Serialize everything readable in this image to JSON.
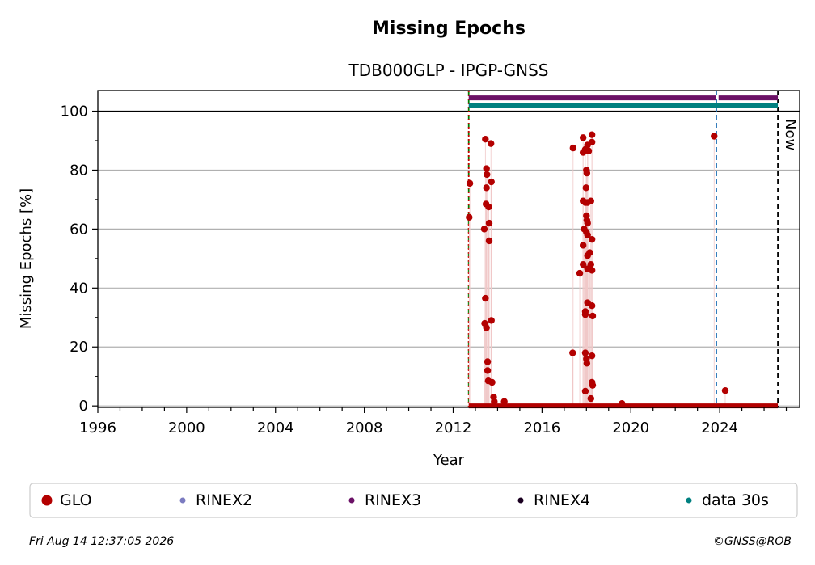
{
  "chart_data": {
    "type": "scatter",
    "title": "Missing Epochs",
    "subtitle": "TDB000GLP - IPGP-GNSS",
    "xlabel": "Year",
    "ylabel": "Missing Epochs [%]",
    "xlim": [
      1996,
      2027.6
    ],
    "ylim": [
      -0.5,
      107
    ],
    "x_ticks": [
      1996,
      2000,
      2004,
      2008,
      2012,
      2016,
      2020,
      2024
    ],
    "y_ticks": [
      0,
      20,
      40,
      60,
      80,
      100
    ],
    "grid": "horizontal",
    "now_label": "Now",
    "vertical_lines": [
      {
        "x": 2012.7,
        "color": "#008000",
        "style": "dashed"
      },
      {
        "x": 2012.7,
        "color": "#cc0000",
        "style": "dotted"
      },
      {
        "x": 2023.85,
        "color": "#1f6fb4",
        "style": "dashed"
      },
      {
        "x": 2026.62,
        "color": "#000000",
        "style": "dashed"
      }
    ],
    "bands": [
      {
        "name": "RINEX3",
        "y": 104.5,
        "x_start": 2012.7,
        "x_end": 2026.62,
        "color": "#6b1166",
        "gap": [
          2023.85,
          2023.95
        ]
      },
      {
        "name": "data 30s",
        "y": 101.8,
        "x_start": 2012.7,
        "x_end": 2026.62,
        "color": "#008080"
      }
    ],
    "baseline": {
      "name": "GLO",
      "y": 0,
      "x_start": 2012.7,
      "x_end": 2026.62,
      "color": "#b30000"
    },
    "series": [
      {
        "name": "GLO",
        "color": "#b30000",
        "points": [
          [
            2012.72,
            64
          ],
          [
            2012.75,
            75.5
          ],
          [
            2013.4,
            60
          ],
          [
            2013.45,
            90.5
          ],
          [
            2013.5,
            80.5
          ],
          [
            2013.52,
            78.5
          ],
          [
            2013.5,
            74
          ],
          [
            2013.48,
            68.5
          ],
          [
            2013.6,
            67.5
          ],
          [
            2013.62,
            62
          ],
          [
            2013.62,
            56
          ],
          [
            2013.45,
            36.5
          ],
          [
            2013.42,
            28
          ],
          [
            2013.5,
            26.5
          ],
          [
            2013.72,
            29
          ],
          [
            2013.55,
            15
          ],
          [
            2013.55,
            12
          ],
          [
            2013.58,
            8.5
          ],
          [
            2013.75,
            8
          ],
          [
            2013.7,
            89
          ],
          [
            2013.72,
            76
          ],
          [
            2013.82,
            3
          ],
          [
            2013.85,
            1.5
          ],
          [
            2014.3,
            1.5
          ],
          [
            2017.4,
            87.5
          ],
          [
            2017.38,
            18
          ],
          [
            2017.85,
            91
          ],
          [
            2017.85,
            86
          ],
          [
            2017.95,
            87
          ],
          [
            2018.05,
            88.5
          ],
          [
            2018.1,
            86.5
          ],
          [
            2018.25,
            92
          ],
          [
            2018.25,
            89.5
          ],
          [
            2018.0,
            80
          ],
          [
            2018.02,
            79
          ],
          [
            2017.98,
            74
          ],
          [
            2017.85,
            69.5
          ],
          [
            2017.95,
            69
          ],
          [
            2018.05,
            69
          ],
          [
            2018.2,
            69.5
          ],
          [
            2018.0,
            64.5
          ],
          [
            2018.02,
            63
          ],
          [
            2018.05,
            62
          ],
          [
            2017.9,
            60
          ],
          [
            2018.0,
            59
          ],
          [
            2018.05,
            58
          ],
          [
            2018.25,
            56.5
          ],
          [
            2017.85,
            54.5
          ],
          [
            2018.05,
            51
          ],
          [
            2018.15,
            52
          ],
          [
            2017.85,
            48
          ],
          [
            2018.2,
            48
          ],
          [
            2018.05,
            46.5
          ],
          [
            2018.25,
            46
          ],
          [
            2017.7,
            45
          ],
          [
            2018.05,
            35
          ],
          [
            2018.25,
            34
          ],
          [
            2017.95,
            32
          ],
          [
            2017.95,
            31
          ],
          [
            2018.28,
            30.5
          ],
          [
            2017.95,
            18
          ],
          [
            2018.0,
            16
          ],
          [
            2018.02,
            14.5
          ],
          [
            2018.25,
            17
          ],
          [
            2018.25,
            8
          ],
          [
            2018.28,
            7
          ],
          [
            2017.95,
            5
          ],
          [
            2018.2,
            2.5
          ],
          [
            2019.6,
            0.8
          ],
          [
            2023.75,
            91.5
          ],
          [
            2024.25,
            5.2
          ]
        ]
      }
    ],
    "legend": {
      "placement": "bottom",
      "entries": [
        {
          "label": "GLO",
          "color": "#b30000",
          "size": "large"
        },
        {
          "label": "RINEX2",
          "color": "#7b7bc0",
          "size": "small"
        },
        {
          "label": "RINEX3",
          "color": "#6b1166",
          "size": "small"
        },
        {
          "label": "RINEX4",
          "color": "#1a0020",
          "size": "small"
        },
        {
          "label": "data 30s",
          "color": "#008080",
          "size": "small"
        }
      ]
    }
  },
  "footer": {
    "timestamp": "Fri Aug 14 12:37:05 2026",
    "credit": "©GNSS@ROB"
  }
}
